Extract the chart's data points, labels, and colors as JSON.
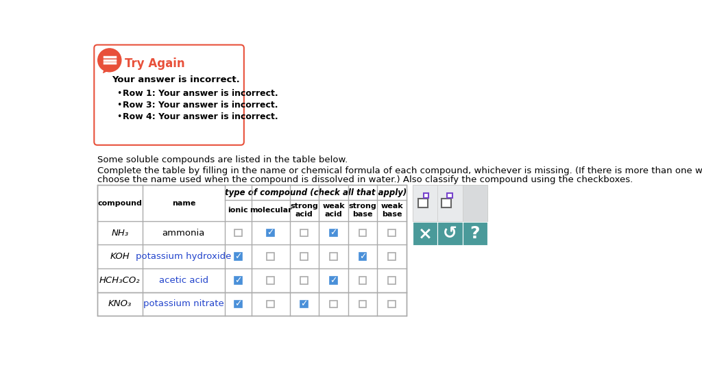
{
  "bg_color": "#ffffff",
  "error_box": {
    "title": "Try Again",
    "title_color": "#e8503a",
    "border_color": "#e8503a",
    "bg_color": "#ffffff",
    "icon_bg": "#e8503a",
    "bold_text": "Your answer is incorrect.",
    "bullets": [
      "Row 1: Your answer is incorrect.",
      "Row 3: Your answer is incorrect.",
      "Row 4: Your answer is incorrect."
    ]
  },
  "para1": "Some soluble compounds are listed in the table below.",
  "para2_line1": "Complete the table by filling in the name or chemical formula of each compound, whichever is missing. (If there is more than one way to name the compound,",
  "para2_line2": "choose the name used when the compound is dissolved in water.) Also classify the compound using the checkboxes.",
  "table": {
    "compounds": [
      "NH₃",
      "KOH",
      "HCH₃CO₂",
      "KNO₃"
    ],
    "names": [
      "ammonia",
      "potassium hydroxide",
      "acetic acid",
      "potassium nitrate"
    ],
    "name_colors": [
      "#000000",
      "#2244cc",
      "#2244cc",
      "#2244cc"
    ],
    "checked": [
      [
        false,
        true,
        false,
        true,
        false,
        false
      ],
      [
        true,
        false,
        false,
        false,
        true,
        false
      ],
      [
        true,
        false,
        false,
        true,
        false,
        false
      ],
      [
        true,
        false,
        true,
        false,
        false,
        false
      ]
    ],
    "col_headers_row1": [
      "compound",
      "name",
      "type of compound (check all that apply)"
    ],
    "col_headers_row2": [
      "ionic",
      "molecular",
      "strong\nacid",
      "weak\nacid",
      "strong\nbase",
      "weak\nbase"
    ]
  },
  "teal_color": "#4a9a9a",
  "check_color": "#4a90d9",
  "panel_top_bg": "#e8eaec",
  "panel_top_border": "#cccccc",
  "purple_color": "#7744cc"
}
